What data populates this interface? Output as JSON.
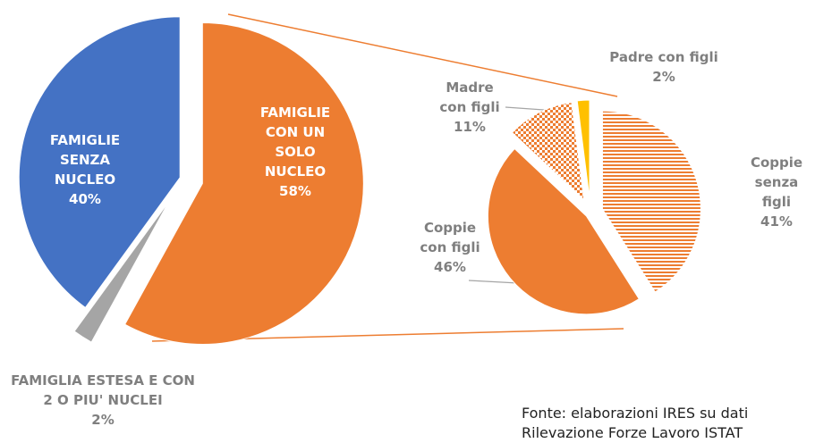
{
  "chart_data": [
    {
      "type": "pie",
      "categories": [
        "FAMIGLIE CON UN SOLO NUCLEO",
        "FAMIGLIA ESTESA E CON 2 O PIU' NUCLEI",
        "FAMIGLIE SENZA NUCLEO"
      ],
      "values": [
        58,
        2,
        40
      ],
      "value_labels": [
        "58%",
        "2%",
        "40%"
      ],
      "colors": [
        "#ed7d31",
        "#a5a5a5",
        "#4472c4"
      ]
    },
    {
      "type": "pie",
      "categories": [
        "Coppie senza figli",
        "Coppie con figli",
        "Madre con figli",
        "Padre con figli"
      ],
      "values": [
        41,
        46,
        11,
        2
      ],
      "value_labels": [
        "41%",
        "46%",
        "11%",
        "2%"
      ],
      "colors": [
        "#ed7d31",
        "#ed7d31",
        "#ed7d31",
        "#ffc000"
      ],
      "patterns": [
        "horizontal",
        "solid",
        "checker",
        "solid"
      ],
      "note": "Fonte: elaborazioni IRES su dati Rilevazione Forze Lavoro ISTAT"
    }
  ]
}
